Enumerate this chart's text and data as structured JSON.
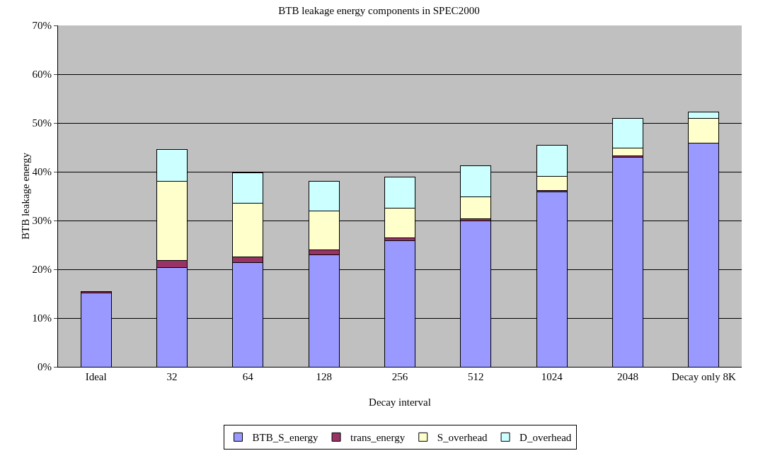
{
  "chart_data": {
    "type": "bar",
    "title": "BTB leakage energy components in SPEC2000",
    "xlabel": "Decay interval",
    "ylabel": "BTB leakage energy",
    "categories": [
      "Ideal",
      "32",
      "64",
      "128",
      "256",
      "512",
      "1024",
      "2048",
      "Decay only 8K"
    ],
    "series": [
      {
        "name": "BTB_S_energy",
        "color": "#9999ff",
        "values": [
          15.1,
          20.4,
          21.4,
          23.0,
          25.8,
          29.9,
          35.8,
          42.9,
          45.9
        ]
      },
      {
        "name": "trans_energy",
        "color": "#993366",
        "values": [
          0.3,
          1.4,
          1.1,
          1.0,
          0.7,
          0.5,
          0.3,
          0.3,
          null
        ]
      },
      {
        "name": "S_overhead",
        "color": "#ffffcc",
        "values": [
          null,
          16.3,
          11.0,
          7.9,
          6.1,
          4.5,
          3.0,
          1.6,
          5.0
        ]
      },
      {
        "name": "D_overhead",
        "color": "#ccffff",
        "values": [
          null,
          6.4,
          6.3,
          6.2,
          6.3,
          6.4,
          6.4,
          6.2,
          1.3
        ]
      }
    ],
    "stacked": true,
    "ylim": [
      0,
      70
    ],
    "yticks": [
      {
        "value": 0,
        "label": "0%"
      },
      {
        "value": 10,
        "label": "10%"
      },
      {
        "value": 20,
        "label": "20%"
      },
      {
        "value": 30,
        "label": "30%"
      },
      {
        "value": 40,
        "label": "40%"
      },
      {
        "value": 50,
        "label": "50%"
      },
      {
        "value": 60,
        "label": "60%"
      },
      {
        "value": 70,
        "label": "70%"
      }
    ],
    "grid": "y",
    "legend": "bottom"
  }
}
